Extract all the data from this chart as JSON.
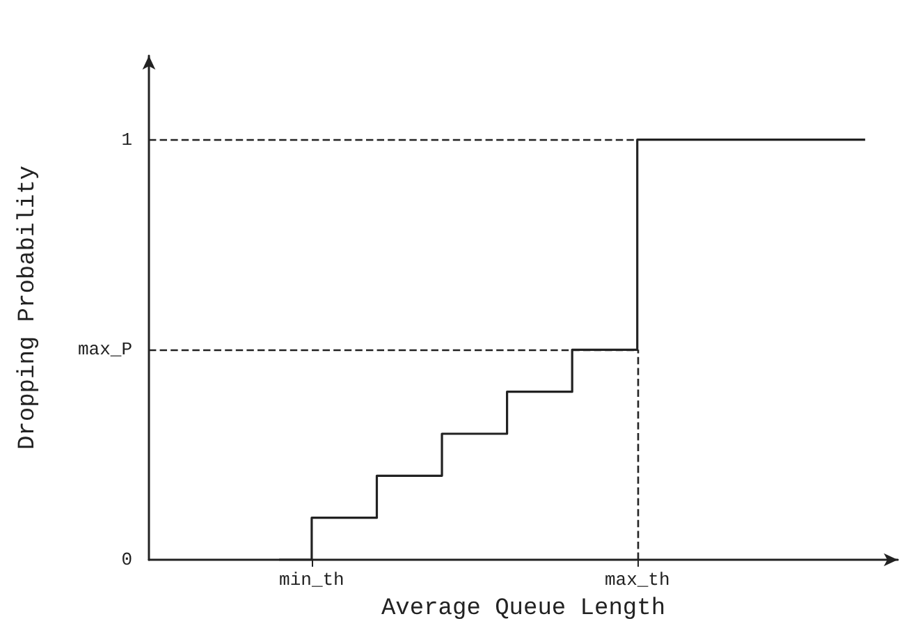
{
  "chart_data": {
    "type": "step",
    "xlabel": "Average Queue Length",
    "ylabel": "Dropping Probability",
    "categories": [
      null,
      null,
      null,
      null,
      null,
      "min_th",
      null,
      null,
      null,
      null,
      null,
      null,
      null,
      null,
      null,
      "max_th",
      null,
      null,
      null,
      null,
      null,
      null,
      null,
      null
    ],
    "values": [
      null,
      null,
      null,
      null,
      0,
      0.1,
      0.1,
      0.2,
      0.2,
      0.3,
      0.3,
      0.4,
      0.4,
      0.5,
      0.5,
      1,
      1,
      1,
      1,
      1,
      1,
      1,
      1,
      null
    ],
    "color": "#222222",
    "ylim": [
      0,
      1.2
    ],
    "yticks": [
      0,
      {
        "value": 0.5,
        "label": "max_P"
      },
      1
    ],
    "ref_lines": [
      {
        "axis": "y",
        "value": 1,
        "label": null,
        "line_style": "dashed"
      },
      {
        "axis": "y",
        "value": 0.5,
        "label": null,
        "line_style": "dashed"
      },
      {
        "axis": "x",
        "value": "max_th",
        "label": null,
        "line_style": "dashed"
      }
    ],
    "marker": "none",
    "line_style": "solid"
  }
}
